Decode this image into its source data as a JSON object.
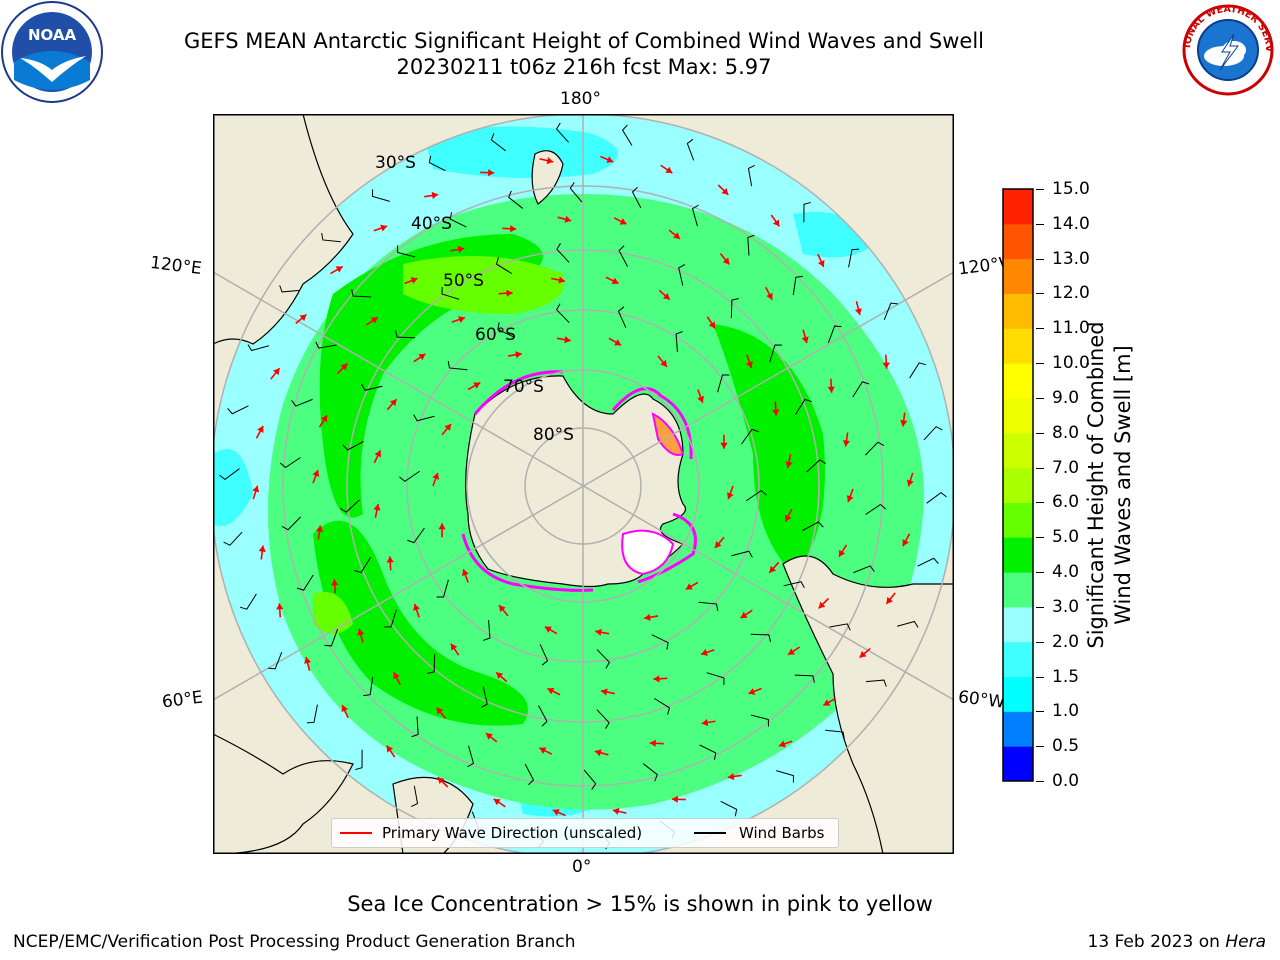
{
  "header": {
    "title_line1": "GEFS MEAN Antarctic Significant Height of Combined Wind Waves and Swell",
    "title_line2": "20230211 t06z 216h fcst   Max: 5.97"
  },
  "logos": {
    "left": {
      "icon": "noaa-logo",
      "text": "NOAA"
    },
    "right": {
      "icon": "nws-logo",
      "text": "NATIONAL WEATHER SERVICE"
    }
  },
  "map": {
    "projection": "south-polar-stereographic",
    "longitude_labels": {
      "top": "180°",
      "bottom": "0°",
      "upper_left": "120°E",
      "upper_right": "120°W",
      "lower_left": "60°E",
      "lower_right": "60°W"
    },
    "latitude_labels": [
      "30°S",
      "40°S",
      "50°S",
      "60°S",
      "70°S",
      "80°S"
    ],
    "colors": {
      "land": "#efebd9",
      "ocean_low": "#99ffff",
      "grid": "#b0b0b0",
      "ice_edge": "#ff00ff",
      "wave_arrow": "#ff0000",
      "wind_barb": "#000000"
    }
  },
  "colorbar": {
    "label_line1": "Significant Height of Combined",
    "label_line2": "Wind Waves and Swell [m]",
    "ticks": [
      "0.0",
      "0.5",
      "1.0",
      "1.5",
      "2.0",
      "3.0",
      "4.0",
      "5.0",
      "6.0",
      "7.0",
      "8.0",
      "9.0",
      "10.0",
      "11.0",
      "12.0",
      "13.0",
      "14.0",
      "15.0"
    ],
    "colors": [
      "#0000ff",
      "#0080ff",
      "#00ffff",
      "#40ffff",
      "#99ffff",
      "#4dff80",
      "#00f000",
      "#66ff00",
      "#aaff00",
      "#ccff00",
      "#eeff00",
      "#ffff00",
      "#ffdd00",
      "#ffbb00",
      "#ff8800",
      "#ff5500",
      "#ff2200"
    ]
  },
  "legend": {
    "primary_wave": "Primary Wave Direction (unscaled)",
    "wind_barbs": "Wind Barbs"
  },
  "footer": {
    "note": "Sea Ice Concentration > 15% is shown in pink to yellow",
    "credit": "NCEP/EMC/Verification Post Processing Product Generation Branch",
    "date": "13 Feb 2023 on",
    "machine": "Hera"
  }
}
